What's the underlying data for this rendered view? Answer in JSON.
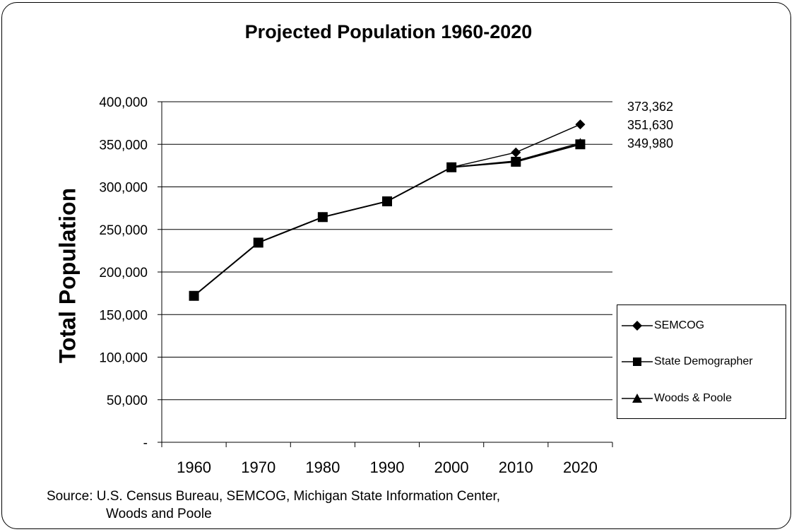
{
  "chart_data": {
    "type": "line",
    "title": "Projected Population 1960-2020",
    "ylabel": "Total Population",
    "xlabel": "",
    "x": [
      "1960",
      "1970",
      "1980",
      "1990",
      "2000",
      "2010",
      "2020"
    ],
    "ylim": [
      0,
      400000
    ],
    "y_ticks": [
      "-",
      "50,000",
      "100,000",
      "150,000",
      "200,000",
      "250,000",
      "300,000",
      "350,000",
      "400,000"
    ],
    "grid": true,
    "legend_position": "right",
    "series": [
      {
        "name": "SEMCOG",
        "marker": "diamond",
        "values": [
          172000,
          234500,
          264500,
          283000,
          323000,
          340500,
          373362
        ]
      },
      {
        "name": "State Demographer",
        "marker": "square",
        "values": [
          172000,
          234500,
          264500,
          283000,
          323000,
          329500,
          349980
        ]
      },
      {
        "name": "Woods & Poole",
        "marker": "triangle",
        "values": [
          172000,
          234500,
          264500,
          283000,
          323000,
          330500,
          351630
        ]
      }
    ],
    "end_labels": [
      "373,362",
      "351,630",
      "349,980"
    ],
    "source": [
      "Source: U.S. Census Bureau, SEMCOG, Michigan State Information Center,",
      "Woods and Poole"
    ]
  }
}
